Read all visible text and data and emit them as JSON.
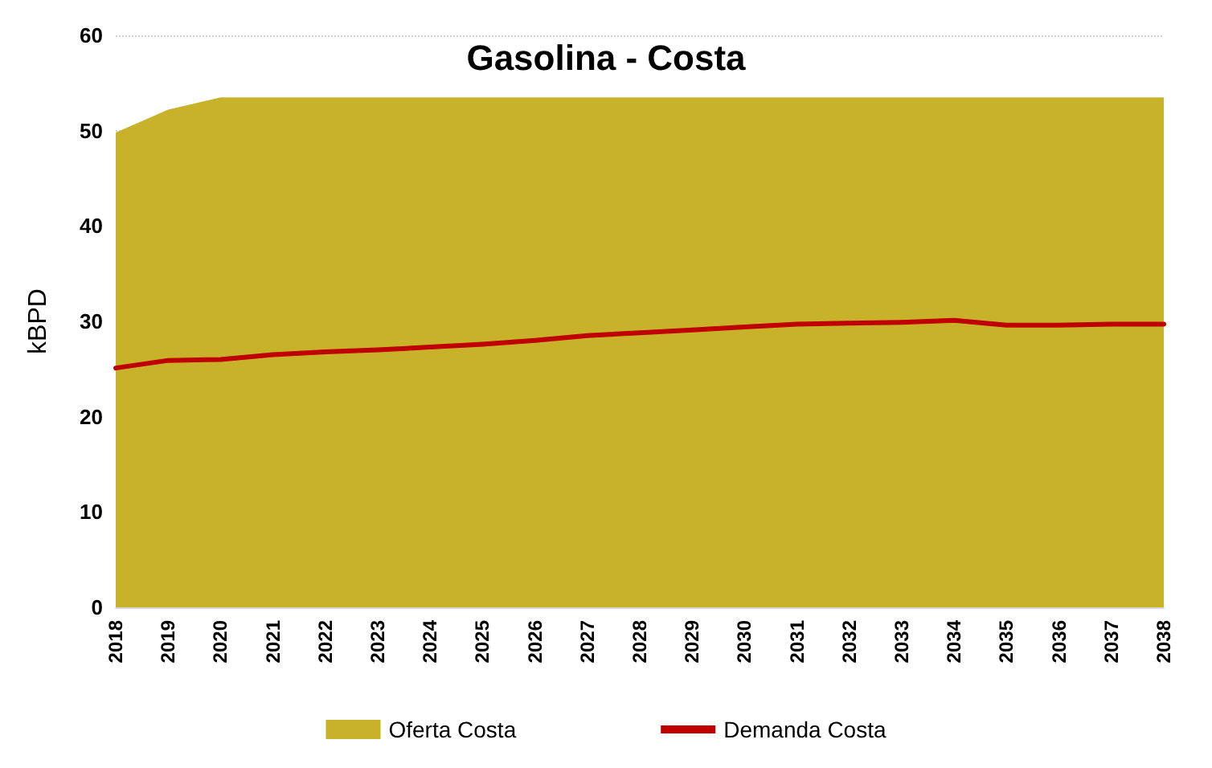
{
  "chart_data": {
    "type": "area",
    "title": "Gasolina - Costa",
    "ylabel": "kBPD",
    "categories": [
      "2018",
      "2019",
      "2020",
      "2021",
      "2022",
      "2023",
      "2024",
      "2025",
      "2026",
      "2027",
      "2028",
      "2029",
      "2030",
      "2031",
      "2032",
      "2033",
      "2034",
      "2035",
      "2036",
      "2037",
      "2038"
    ],
    "series": [
      {
        "name": "Oferta Costa",
        "color": "#c8b22a",
        "values": [
          49.8,
          52.2,
          53.5,
          53.5,
          53.5,
          53.5,
          53.5,
          53.5,
          53.5,
          53.5,
          53.5,
          53.5,
          53.5,
          53.5,
          53.5,
          53.5,
          53.5,
          53.5,
          53.5,
          53.5,
          53.5
        ]
      },
      {
        "name": "Demanda Costa",
        "type": "line",
        "color": "#c00000",
        "values": [
          25.1,
          25.9,
          26.0,
          26.5,
          26.8,
          27.0,
          27.3,
          27.6,
          28.0,
          28.5,
          28.8,
          29.1,
          29.4,
          29.7,
          29.8,
          29.9,
          30.1,
          29.6,
          29.6,
          29.7,
          29.7
        ]
      }
    ],
    "ylim": [
      0,
      60
    ],
    "yticks": [
      0,
      10,
      20,
      30,
      40,
      50,
      60
    ],
    "grid": "y",
    "legend": "bottom",
    "marker": "none",
    "line_style": "solid"
  }
}
